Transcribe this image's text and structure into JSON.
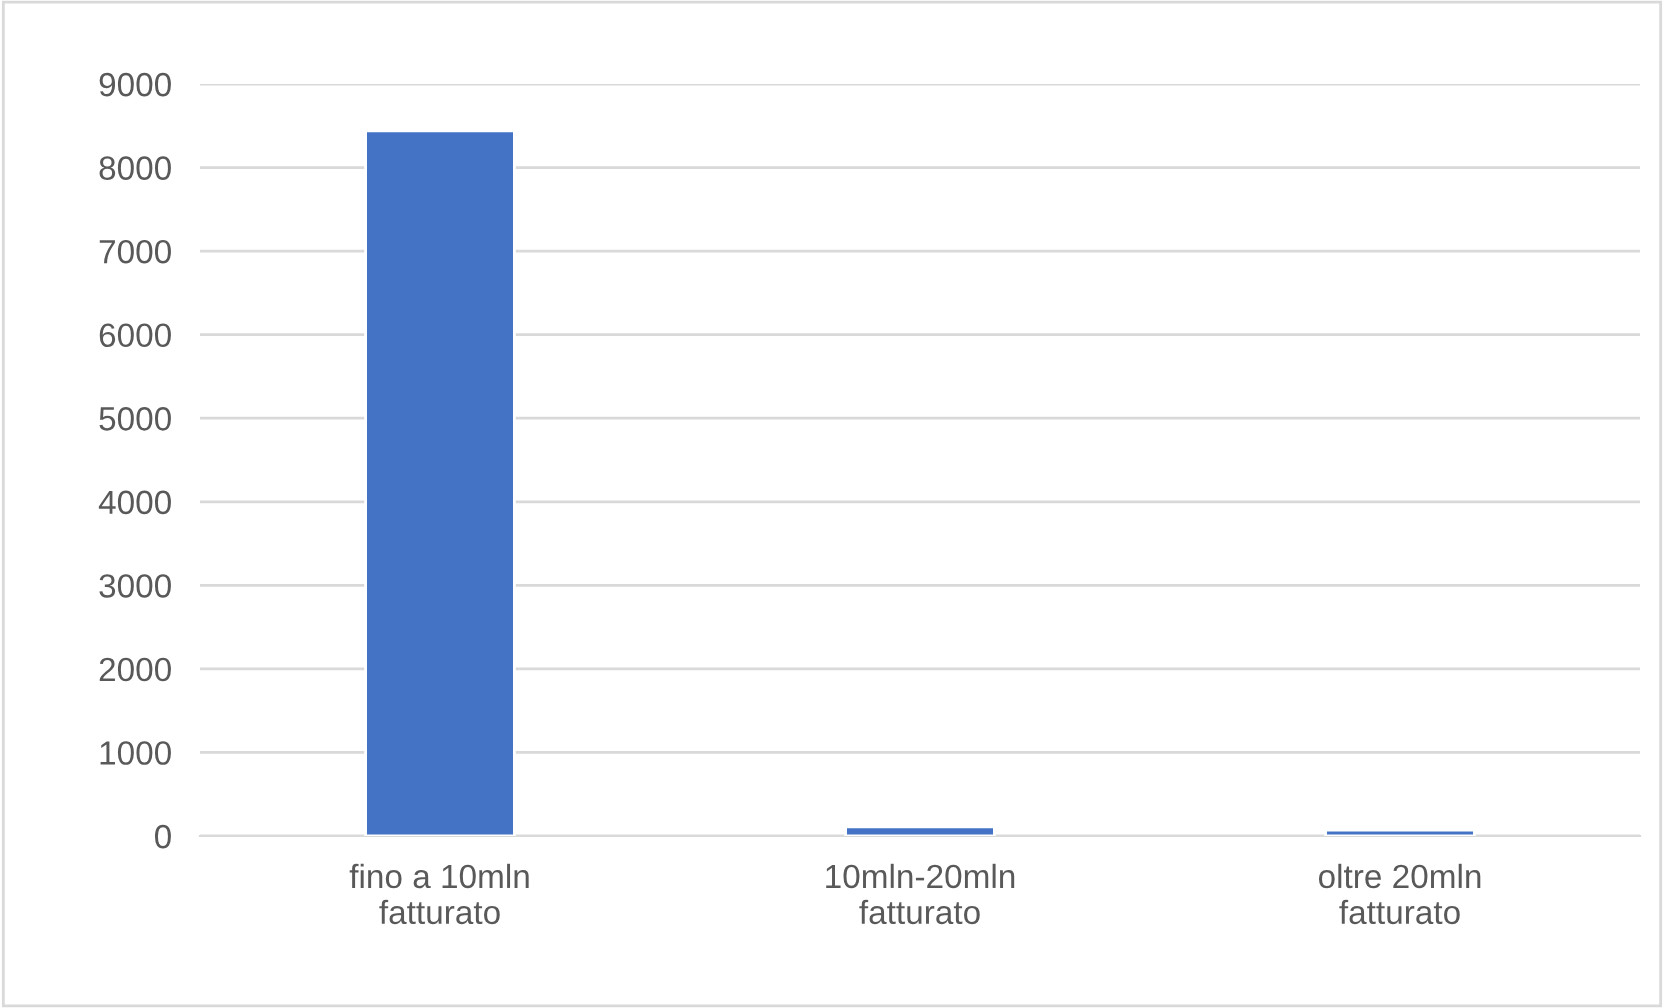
{
  "chart_data": {
    "type": "bar",
    "categories": [
      "fino a 10mln\nfatturato",
      "10mln-20mln\nfatturato",
      "oltre 20mln\nfatturato"
    ],
    "values": [
      8440,
      110,
      70
    ],
    "color": "#4472c4",
    "ylim": [
      0,
      9000
    ],
    "yticks": [
      0,
      1000,
      2000,
      3000,
      4000,
      5000,
      6000,
      7000,
      8000,
      9000
    ],
    "grid": "y"
  }
}
